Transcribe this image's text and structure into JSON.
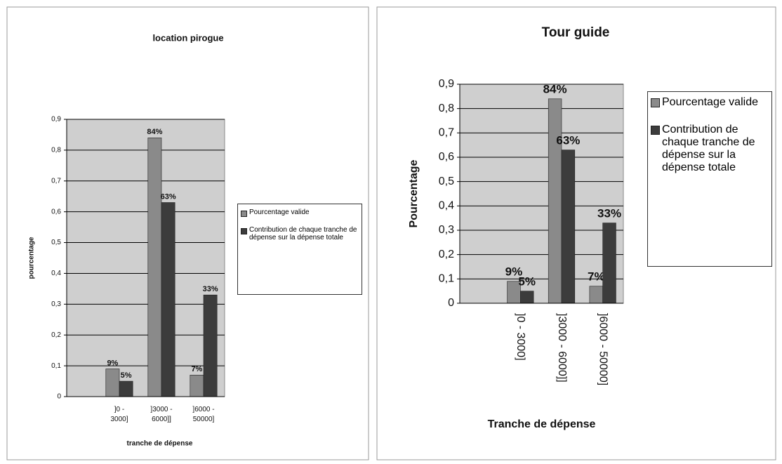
{
  "chart_data": [
    {
      "type": "bar",
      "title": "location pirogue",
      "y_label": "pourcentage",
      "x_label": "tranche de dépense",
      "categories": [
        "]0 - 3000]",
        "]3000 - 6000]]",
        "]6000 - 50000]"
      ],
      "series": [
        {
          "name": "Pourcentage valide",
          "color": "#8a8a8a",
          "values": [
            0.09,
            0.84,
            0.07
          ],
          "value_labels": [
            "9%",
            "84%",
            "7%"
          ]
        },
        {
          "name": "Contribution de chaque tranche de dépense sur la dépense totale",
          "color": "#3c3c3c",
          "values": [
            0.05,
            0.63,
            0.33
          ],
          "value_labels": [
            "5%",
            "63%",
            "33%"
          ]
        }
      ],
      "ylim": [
        0,
        0.9
      ],
      "yticks": [
        0,
        {
          "value": 0.1,
          "label": "0,1"
        },
        {
          "value": 0.2,
          "label": "0,2"
        },
        {
          "value": 0.3,
          "label": "0,3"
        },
        {
          "value": 0.4,
          "label": "0,4"
        },
        {
          "value": 0.5,
          "label": "0,5"
        },
        {
          "value": 0.6,
          "label": "0,6"
        },
        {
          "value": 0.7,
          "label": "0,7"
        },
        {
          "value": 0.8,
          "label": "0,8"
        },
        {
          "value": 0.9,
          "label": "0,9"
        }
      ],
      "grid": true,
      "legend": "right"
    },
    {
      "type": "bar",
      "title": "Tour guide",
      "y_label": "Pourcentage",
      "x_label": "Tranche de dépense",
      "categories": [
        "]0 - 3000]",
        "]3000 - 6000]]",
        "]6000 - 50000]"
      ],
      "series": [
        {
          "name": "Pourcentage valide",
          "color": "#8a8a8a",
          "values": [
            0.09,
            0.84,
            0.07
          ],
          "value_labels": [
            "9%",
            "84%",
            "7%"
          ]
        },
        {
          "name": "Contribution de chaque tranche de dépense sur la dépense totale",
          "color": "#3c3c3c",
          "values": [
            0.05,
            0.63,
            0.33
          ],
          "value_labels": [
            "5%",
            "63%",
            "33%"
          ]
        }
      ],
      "ylim": [
        0,
        0.9
      ],
      "yticks": [
        0,
        {
          "value": 0.1,
          "label": "0,1"
        },
        {
          "value": 0.2,
          "label": "0,2"
        },
        {
          "value": 0.3,
          "label": "0,3"
        },
        {
          "value": 0.4,
          "label": "0,4"
        },
        {
          "value": 0.5,
          "label": "0,5"
        },
        {
          "value": 0.6,
          "label": "0,6"
        },
        {
          "value": 0.7,
          "label": "0,7"
        },
        {
          "value": 0.8,
          "label": "0,8"
        },
        {
          "value": 0.9,
          "label": "0,9"
        }
      ],
      "grid": true,
      "legend": "right"
    }
  ]
}
